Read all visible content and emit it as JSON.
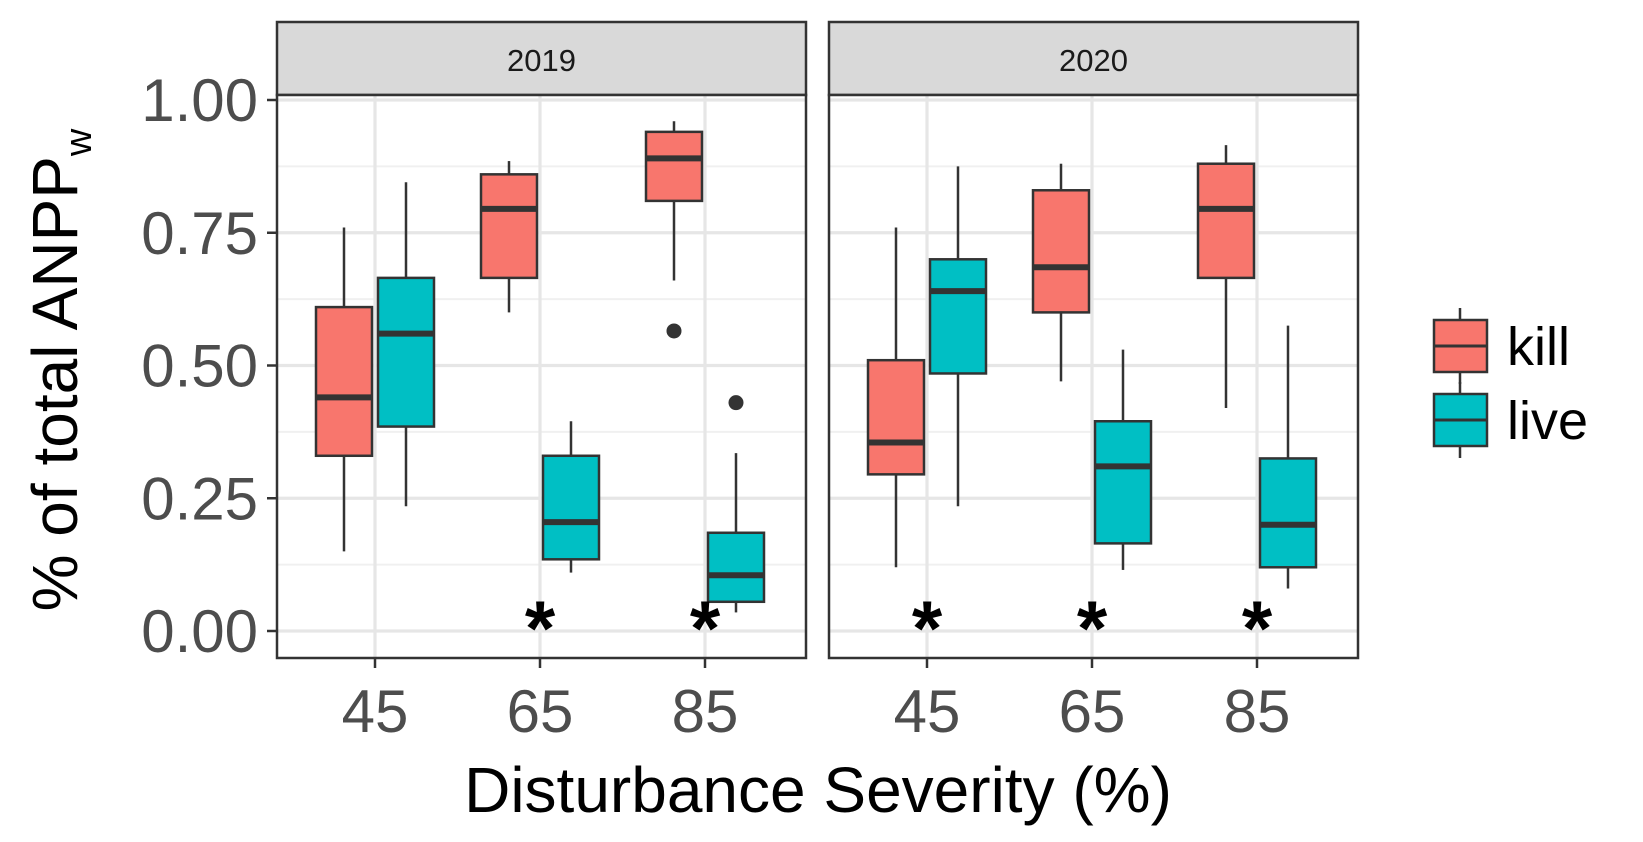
{
  "chart_data": {
    "type": "boxplot",
    "xlabel": "Disturbance Severity (%)",
    "ylabel": {
      "main": "% of total ANPP",
      "subscript": "w"
    },
    "ylim": [
      -0.05,
      1.15
    ],
    "yticks": [
      "0.00",
      "0.25",
      "0.50",
      "0.75",
      "1.00"
    ],
    "categories": [
      "45",
      "65",
      "85"
    ],
    "grid": true,
    "legend": {
      "position": "right",
      "entries": [
        {
          "name": "kill",
          "color": "#F8766D"
        },
        {
          "name": "live",
          "color": "#00BFC4"
        }
      ]
    },
    "panels": [
      {
        "label": "2019",
        "significance_marks": [
          "65",
          "85"
        ],
        "series": [
          {
            "name": "kill",
            "boxes": [
              {
                "x": "45",
                "min": 0.15,
                "q1": 0.33,
                "median": 0.44,
                "q3": 0.61,
                "max": 0.76,
                "outliers": []
              },
              {
                "x": "65",
                "min": 0.6,
                "q1": 0.665,
                "median": 0.795,
                "q3": 0.86,
                "max": 0.885,
                "outliers": []
              },
              {
                "x": "85",
                "min": 0.66,
                "q1": 0.81,
                "median": 0.89,
                "q3": 0.94,
                "max": 0.96,
                "outliers": [
                  0.565
                ]
              }
            ]
          },
          {
            "name": "live",
            "boxes": [
              {
                "x": "45",
                "min": 0.235,
                "q1": 0.385,
                "median": 0.56,
                "q3": 0.665,
                "max": 0.845,
                "outliers": []
              },
              {
                "x": "65",
                "min": 0.11,
                "q1": 0.135,
                "median": 0.205,
                "q3": 0.33,
                "max": 0.395,
                "outliers": []
              },
              {
                "x": "85",
                "min": 0.035,
                "q1": 0.055,
                "median": 0.105,
                "q3": 0.185,
                "max": 0.335,
                "outliers": [
                  0.43
                ]
              }
            ]
          }
        ]
      },
      {
        "label": "2020",
        "significance_marks": [
          "45",
          "65",
          "85"
        ],
        "series": [
          {
            "name": "kill",
            "boxes": [
              {
                "x": "45",
                "min": 0.12,
                "q1": 0.295,
                "median": 0.355,
                "q3": 0.51,
                "max": 0.76,
                "outliers": []
              },
              {
                "x": "65",
                "min": 0.47,
                "q1": 0.6,
                "median": 0.685,
                "q3": 0.83,
                "max": 0.88,
                "outliers": []
              },
              {
                "x": "85",
                "min": 0.42,
                "q1": 0.665,
                "median": 0.795,
                "q3": 0.88,
                "max": 0.915,
                "outliers": []
              }
            ]
          },
          {
            "name": "live",
            "boxes": [
              {
                "x": "45",
                "min": 0.235,
                "q1": 0.485,
                "median": 0.64,
                "q3": 0.7,
                "max": 0.875,
                "outliers": []
              },
              {
                "x": "65",
                "min": 0.115,
                "q1": 0.165,
                "median": 0.31,
                "q3": 0.395,
                "max": 0.53,
                "outliers": []
              },
              {
                "x": "85",
                "min": 0.08,
                "q1": 0.12,
                "median": 0.2,
                "q3": 0.325,
                "max": 0.575,
                "outliers": []
              }
            ]
          }
        ]
      }
    ]
  },
  "labels": {
    "significance_symbol": "*"
  }
}
